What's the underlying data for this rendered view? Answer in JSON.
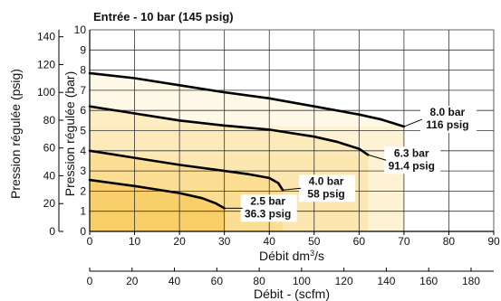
{
  "chart_data": {
    "type": "line",
    "title": "Entrée - 10 bar (145 psig)",
    "axes": {
      "x_bottom": {
        "label": "Débit dm³/s",
        "label_text": "Débit dm",
        "label_sup": "3",
        "label_tail": "/s",
        "lim": [
          0,
          90
        ],
        "ticks": [
          0,
          10,
          20,
          30,
          40,
          50,
          60,
          70,
          80,
          90
        ]
      },
      "x_secondary": {
        "label": "Débit - (scfm)",
        "lim": [
          0,
          190.7
        ],
        "ticks": [
          0,
          20,
          40,
          60,
          80,
          100,
          120,
          140,
          160,
          180
        ]
      },
      "y_right": {
        "label": "Pression régulée (bar)",
        "lim": [
          0,
          10
        ],
        "ticks": [
          0,
          1,
          2,
          3,
          4,
          5,
          6,
          7,
          8,
          9,
          10
        ]
      },
      "y_left": {
        "label": "Pression régulée (psig)",
        "lim": [
          0,
          145
        ],
        "ticks": [
          0,
          20,
          40,
          60,
          80,
          100,
          120,
          140
        ]
      }
    },
    "grid": true,
    "series": [
      {
        "name": "8.0 bar",
        "psig": "116 psig",
        "color": "#fdf2d4",
        "x": [
          0,
          10,
          20,
          30,
          40,
          50,
          60,
          65,
          70
        ],
        "y": [
          7.85,
          7.6,
          7.25,
          6.9,
          6.6,
          6.2,
          5.8,
          5.55,
          5.2
        ]
      },
      {
        "name": "6.3 bar",
        "psig": "91.4 psig",
        "color": "#fbe3a5",
        "x": [
          0,
          10,
          20,
          30,
          40,
          50,
          55,
          60,
          62
        ],
        "y": [
          6.2,
          5.85,
          5.5,
          5.25,
          5.05,
          4.7,
          4.45,
          4.1,
          3.8
        ]
      },
      {
        "name": "4.0 bar",
        "psig": "58 psig",
        "color": "#f9d77c",
        "x": [
          0,
          10,
          20,
          30,
          35,
          40,
          42,
          43
        ],
        "y": [
          4.0,
          3.65,
          3.3,
          3.0,
          2.85,
          2.65,
          2.4,
          2.05
        ]
      },
      {
        "name": "2.5 bar",
        "psig": "36.3 psig",
        "color": "#f5c24a",
        "x": [
          0,
          10,
          20,
          25,
          28,
          30
        ],
        "y": [
          2.55,
          2.25,
          1.9,
          1.65,
          1.4,
          1.15
        ]
      }
    ]
  }
}
